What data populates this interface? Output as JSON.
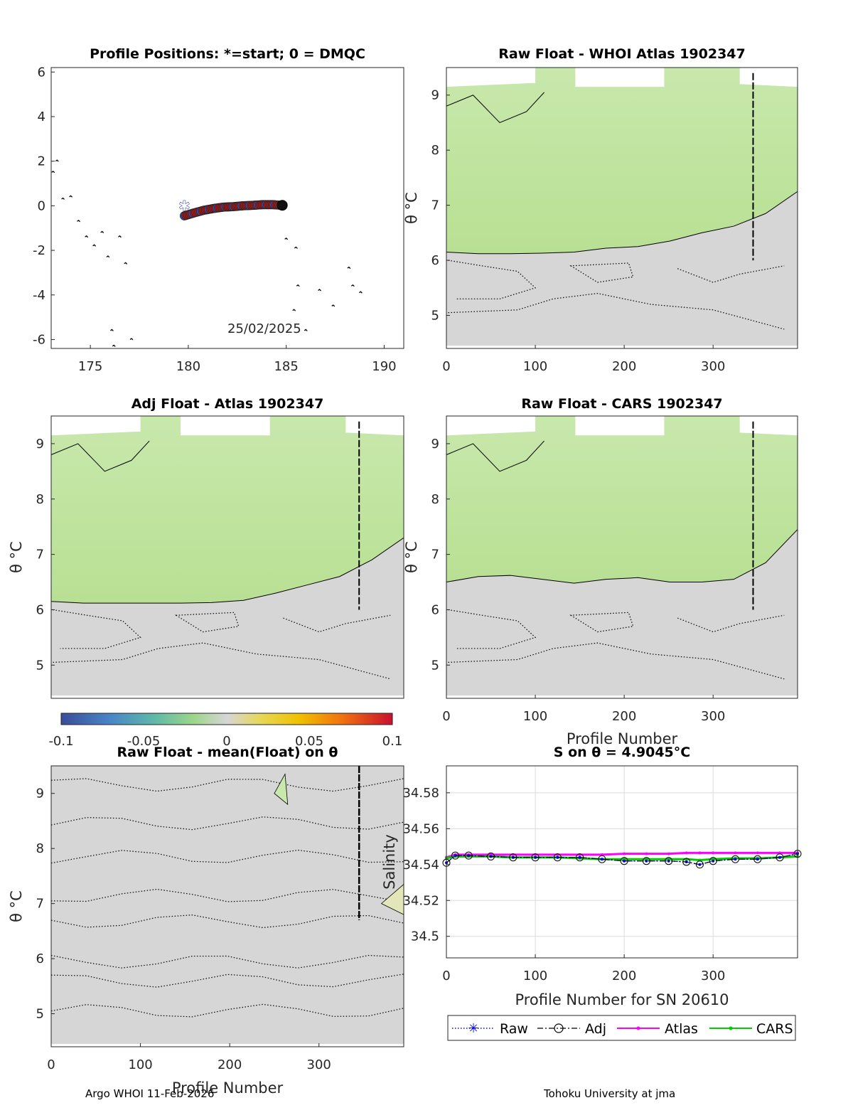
{
  "figure": {
    "footer_left": "Argo WHOI 11-Feb-2026",
    "footer_right": "Tohoku University at jma"
  },
  "chart_data": [
    {
      "id": "positions",
      "type": "scatter",
      "title": "Profile Positions: *=start; 0 = DMQC",
      "xlabel": "",
      "ylabel": "",
      "xlim": [
        173,
        191
      ],
      "ylim": [
        -6.4,
        6.2
      ],
      "xticks": [
        175,
        180,
        185,
        190
      ],
      "yticks": [
        6,
        4,
        2,
        0,
        -2,
        -4,
        -6
      ],
      "annotation": "25/02/2025",
      "start": {
        "x": 179.8,
        "y": 0.0
      },
      "track": {
        "x": [
          179.8,
          180.3,
          180.8,
          181.3,
          181.8,
          182.3,
          182.8,
          183.3,
          183.8,
          184.3,
          184.8
        ],
        "y": [
          -0.45,
          -0.32,
          -0.2,
          -0.12,
          -0.06,
          -0.04,
          0.0,
          0.02,
          0.05,
          0.05,
          0.02
        ]
      },
      "islands": [
        {
          "x": 173.1,
          "y": 1.5
        },
        {
          "x": 173.3,
          "y": 2.0
        },
        {
          "x": 173.6,
          "y": 0.3
        },
        {
          "x": 174.0,
          "y": 0.4
        },
        {
          "x": 174.4,
          "y": -0.7
        },
        {
          "x": 174.8,
          "y": -1.4
        },
        {
          "x": 175.2,
          "y": -1.8
        },
        {
          "x": 175.6,
          "y": -1.2
        },
        {
          "x": 175.9,
          "y": -2.3
        },
        {
          "x": 176.1,
          "y": -5.6
        },
        {
          "x": 176.5,
          "y": -1.4
        },
        {
          "x": 176.8,
          "y": -2.6
        },
        {
          "x": 177.1,
          "y": -6.0
        },
        {
          "x": 176.2,
          "y": -6.3
        },
        {
          "x": 185.0,
          "y": -1.5
        },
        {
          "x": 185.5,
          "y": -1.9
        },
        {
          "x": 185.6,
          "y": -3.6
        },
        {
          "x": 185.4,
          "y": -4.7
        },
        {
          "x": 186.0,
          "y": -5.6
        },
        {
          "x": 186.7,
          "y": -3.8
        },
        {
          "x": 187.4,
          "y": -4.5
        },
        {
          "x": 188.2,
          "y": -2.8
        },
        {
          "x": 188.4,
          "y": -3.6
        },
        {
          "x": 188.8,
          "y": -3.9
        }
      ]
    },
    {
      "id": "raw_whoi",
      "type": "heatmap",
      "title": "Raw Float - WHOI Atlas  1902347",
      "xlabel": "",
      "ylabel": "θ °C",
      "xlim": [
        0,
        395
      ],
      "ylim": [
        4.4,
        9.5
      ],
      "xticks": [
        0,
        100,
        200,
        300
      ],
      "yticks": [
        9,
        8,
        7,
        6,
        5
      ],
      "boundary_theta": [
        6.15,
        6.12,
        6.12,
        6.13,
        6.15,
        6.22,
        6.25,
        6.35,
        6.5,
        6.62,
        6.85,
        7.25
      ]
    },
    {
      "id": "adj_atlas",
      "type": "heatmap",
      "title": "Adj Float - Atlas  1902347",
      "xlabel": "",
      "ylabel": "θ °C",
      "xlim": [
        0,
        395
      ],
      "ylim": [
        4.4,
        9.5
      ],
      "xticks": [],
      "yticks": [
        9,
        8,
        7,
        6,
        5
      ],
      "boundary_theta": [
        6.15,
        6.12,
        6.12,
        6.12,
        6.12,
        6.13,
        6.17,
        6.3,
        6.45,
        6.6,
        6.9,
        7.3
      ]
    },
    {
      "id": "raw_cars",
      "type": "heatmap",
      "title": "Raw Float - CARS  1902347",
      "xlabel": "Profile Number",
      "ylabel": "θ °C",
      "xlim": [
        0,
        395
      ],
      "ylim": [
        4.4,
        9.5
      ],
      "xticks": [
        0,
        100,
        200,
        300
      ],
      "yticks": [
        9,
        8,
        7,
        6,
        5
      ],
      "boundary_theta": [
        6.5,
        6.6,
        6.62,
        6.55,
        6.48,
        6.55,
        6.58,
        6.5,
        6.5,
        6.55,
        6.85,
        7.45
      ]
    },
    {
      "id": "colorbar",
      "type": "colorbar",
      "clim": [
        -0.1,
        0.1
      ],
      "ticks": [
        "-0.1",
        "-0.05",
        "0",
        "0.05",
        "0.1"
      ]
    },
    {
      "id": "raw_mean",
      "type": "heatmap",
      "title": "Raw Float - mean(Float) on θ",
      "xlabel": "Profile Number",
      "ylabel": "θ °C",
      "xlim": [
        0,
        395
      ],
      "ylim": [
        4.4,
        9.5
      ],
      "xticks": [
        0,
        100,
        200,
        300
      ],
      "yticks": [
        9,
        8,
        7,
        6,
        5
      ]
    },
    {
      "id": "salinity",
      "type": "line",
      "title": "S on θ = 4.9045°C",
      "xlabel": "Profile Number for SN 20610",
      "ylabel": "Salinity",
      "xlim": [
        0,
        395
      ],
      "ylim": [
        34.488,
        34.595
      ],
      "xticks": [
        0,
        100,
        200,
        300
      ],
      "yticks": [
        34.58,
        34.56,
        34.54,
        34.52,
        34.5
      ],
      "x": [
        0,
        10,
        25,
        50,
        75,
        100,
        125,
        150,
        175,
        200,
        225,
        250,
        270,
        285,
        300,
        325,
        350,
        375,
        395
      ],
      "series": [
        {
          "name": "Raw",
          "values": [
            34.541,
            34.545,
            34.545,
            34.5445,
            34.544,
            34.544,
            34.544,
            34.544,
            34.543,
            34.542,
            34.542,
            34.542,
            34.5415,
            34.54,
            34.542,
            34.543,
            34.543,
            34.544,
            34.546
          ]
        },
        {
          "name": "Adj",
          "values": [
            34.541,
            34.545,
            34.545,
            34.5445,
            34.544,
            34.544,
            34.544,
            34.544,
            34.543,
            34.542,
            34.542,
            34.542,
            34.5415,
            34.54,
            34.542,
            34.543,
            34.543,
            34.544,
            34.546
          ]
        },
        {
          "name": "Atlas",
          "values": [
            34.544,
            34.5455,
            34.5455,
            34.5455,
            34.5455,
            34.5455,
            34.5455,
            34.5455,
            34.5455,
            34.546,
            34.546,
            34.546,
            34.5465,
            34.5465,
            34.5465,
            34.5465,
            34.5465,
            34.5465,
            34.5465
          ]
        },
        {
          "name": "CARS",
          "values": [
            34.5435,
            34.5445,
            34.5445,
            34.5445,
            34.544,
            34.544,
            34.544,
            34.5435,
            34.543,
            34.543,
            34.543,
            34.543,
            34.543,
            34.5425,
            34.543,
            34.5435,
            34.5435,
            34.544,
            34.5445
          ]
        }
      ],
      "legend": {
        "placement": "bottom",
        "entries": [
          "Raw",
          "Adj",
          "Atlas",
          "CARS"
        ]
      },
      "colors": {
        "Raw": "#0000ff",
        "Adj": "#000000",
        "Atlas": "#ff00ff",
        "CARS": "#00cc00"
      }
    }
  ]
}
